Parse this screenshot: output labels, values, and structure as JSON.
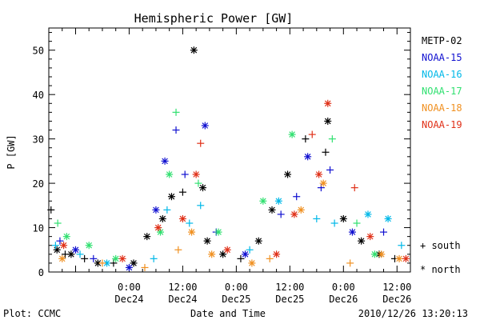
{
  "chart_data": {
    "type": "scatter",
    "title": "Hemispheric Power [GW]",
    "xlabel": "Date and Time",
    "ylabel": "P [GW]",
    "ylim": [
      0,
      55
    ],
    "xlim": [
      "2010-12-23 06:00",
      "2010-12-26 15:00"
    ],
    "y_ticks": [
      0,
      10,
      20,
      30,
      40,
      50
    ],
    "x_ticks": [
      {
        "time": "2010-12-24 00:00",
        "line1": "0:00",
        "line2": "Dec24"
      },
      {
        "time": "2010-12-24 12:00",
        "line1": "12:00",
        "line2": "Dec24"
      },
      {
        "time": "2010-12-25 00:00",
        "line1": "0:00",
        "line2": "Dec25"
      },
      {
        "time": "2010-12-25 12:00",
        "line1": "12:00",
        "line2": "Dec25"
      },
      {
        "time": "2010-12-26 00:00",
        "line1": "0:00",
        "line2": "Dec26"
      },
      {
        "time": "2010-12-26 12:00",
        "line1": "12:00",
        "line2": "Dec26"
      }
    ],
    "grid": false,
    "legend_position": "right",
    "marker_legend": [
      {
        "symbol": "+",
        "label": "south"
      },
      {
        "symbol": "*",
        "label": "north"
      }
    ],
    "footer": {
      "left": "Plot: CCMC",
      "right": "2010/12/26 13:20:13"
    },
    "series": [
      {
        "name": "METP-02",
        "color": "#000000",
        "points": [
          {
            "t": "2010-12-23 06:30",
            "y": 14,
            "m": "+"
          },
          {
            "t": "2010-12-23 07:50",
            "y": 5,
            "m": "*"
          },
          {
            "t": "2010-12-23 09:40",
            "y": 4,
            "m": "+"
          },
          {
            "t": "2010-12-23 11:00",
            "y": 4,
            "m": "*"
          },
          {
            "t": "2010-12-23 14:00",
            "y": 3,
            "m": "+"
          },
          {
            "t": "2010-12-23 17:00",
            "y": 2,
            "m": "*"
          },
          {
            "t": "2010-12-23 20:30",
            "y": 2,
            "m": "+"
          },
          {
            "t": "2010-12-24 01:00",
            "y": 2,
            "m": "*"
          },
          {
            "t": "2010-12-24 04:00",
            "y": 8,
            "m": "*"
          },
          {
            "t": "2010-12-24 07:30",
            "y": 12,
            "m": "*"
          },
          {
            "t": "2010-12-24 09:30",
            "y": 17,
            "m": "*"
          },
          {
            "t": "2010-12-24 12:00",
            "y": 18,
            "m": "+"
          },
          {
            "t": "2010-12-24 14:30",
            "y": 50,
            "m": "*"
          },
          {
            "t": "2010-12-24 16:30",
            "y": 19,
            "m": "*"
          },
          {
            "t": "2010-12-24 17:30",
            "y": 7,
            "m": "*"
          },
          {
            "t": "2010-12-24 21:00",
            "y": 4,
            "m": "*"
          },
          {
            "t": "2010-12-25 01:00",
            "y": 3,
            "m": "+"
          },
          {
            "t": "2010-12-25 05:00",
            "y": 7,
            "m": "*"
          },
          {
            "t": "2010-12-25 08:00",
            "y": 14,
            "m": "*"
          },
          {
            "t": "2010-12-25 11:30",
            "y": 22,
            "m": "*"
          },
          {
            "t": "2010-12-25 15:30",
            "y": 30,
            "m": "+"
          },
          {
            "t": "2010-12-25 20:00",
            "y": 27,
            "m": "+"
          },
          {
            "t": "2010-12-25 20:30",
            "y": 34,
            "m": "*"
          },
          {
            "t": "2010-12-26 00:00",
            "y": 12,
            "m": "*"
          },
          {
            "t": "2010-12-26 04:00",
            "y": 7,
            "m": "*"
          },
          {
            "t": "2010-12-26 08:00",
            "y": 4,
            "m": "*"
          },
          {
            "t": "2010-12-26 11:30",
            "y": 3,
            "m": "+"
          }
        ]
      },
      {
        "name": "NOAA-15",
        "color": "#1010d0",
        "points": [
          {
            "t": "2010-12-23 08:30",
            "y": 7,
            "m": "+"
          },
          {
            "t": "2010-12-23 12:00",
            "y": 5,
            "m": "*"
          },
          {
            "t": "2010-12-23 16:00",
            "y": 3,
            "m": "+"
          },
          {
            "t": "2010-12-24 00:00",
            "y": 1,
            "m": "*"
          },
          {
            "t": "2010-12-24 06:00",
            "y": 14,
            "m": "*"
          },
          {
            "t": "2010-12-24 08:00",
            "y": 25,
            "m": "*"
          },
          {
            "t": "2010-12-24 10:30",
            "y": 32,
            "m": "+"
          },
          {
            "t": "2010-12-24 12:30",
            "y": 22,
            "m": "+"
          },
          {
            "t": "2010-12-24 17:00",
            "y": 33,
            "m": "*"
          },
          {
            "t": "2010-12-24 19:30",
            "y": 9,
            "m": "+"
          },
          {
            "t": "2010-12-25 02:00",
            "y": 4,
            "m": "*"
          },
          {
            "t": "2010-12-25 10:00",
            "y": 13,
            "m": "+"
          },
          {
            "t": "2010-12-25 13:30",
            "y": 17,
            "m": "+"
          },
          {
            "t": "2010-12-25 16:00",
            "y": 26,
            "m": "*"
          },
          {
            "t": "2010-12-25 19:00",
            "y": 19,
            "m": "+"
          },
          {
            "t": "2010-12-25 21:00",
            "y": 23,
            "m": "+"
          },
          {
            "t": "2010-12-26 02:00",
            "y": 9,
            "m": "*"
          },
          {
            "t": "2010-12-26 09:00",
            "y": 9,
            "m": "+"
          }
        ]
      },
      {
        "name": "NOAA-16",
        "color": "#00b8e8",
        "points": [
          {
            "t": "2010-12-23 07:30",
            "y": 6,
            "m": "+"
          },
          {
            "t": "2010-12-23 13:00",
            "y": 4,
            "m": "+"
          },
          {
            "t": "2010-12-23 19:00",
            "y": 2,
            "m": "*"
          },
          {
            "t": "2010-12-24 05:30",
            "y": 3,
            "m": "+"
          },
          {
            "t": "2010-12-24 08:30",
            "y": 14,
            "m": "+"
          },
          {
            "t": "2010-12-24 13:30",
            "y": 11,
            "m": "+"
          },
          {
            "t": "2010-12-24 16:00",
            "y": 15,
            "m": "+"
          },
          {
            "t": "2010-12-25 03:00",
            "y": 5,
            "m": "+"
          },
          {
            "t": "2010-12-25 09:30",
            "y": 16,
            "m": "*"
          },
          {
            "t": "2010-12-25 18:00",
            "y": 12,
            "m": "+"
          },
          {
            "t": "2010-12-25 22:00",
            "y": 11,
            "m": "+"
          },
          {
            "t": "2010-12-26 05:30",
            "y": 13,
            "m": "*"
          },
          {
            "t": "2010-12-26 10:00",
            "y": 12,
            "m": "*"
          },
          {
            "t": "2010-12-26 13:00",
            "y": 6,
            "m": "+"
          }
        ]
      },
      {
        "name": "NOAA-17",
        "color": "#30e070",
        "points": [
          {
            "t": "2010-12-23 08:00",
            "y": 11,
            "m": "+"
          },
          {
            "t": "2010-12-23 10:00",
            "y": 8,
            "m": "*"
          },
          {
            "t": "2010-12-23 15:00",
            "y": 6,
            "m": "*"
          },
          {
            "t": "2010-12-23 21:00",
            "y": 3,
            "m": "*"
          },
          {
            "t": "2010-12-24 07:00",
            "y": 9,
            "m": "*"
          },
          {
            "t": "2010-12-24 09:00",
            "y": 22,
            "m": "*"
          },
          {
            "t": "2010-12-24 10:30",
            "y": 36,
            "m": "+"
          },
          {
            "t": "2010-12-24 15:30",
            "y": 20,
            "m": "+"
          },
          {
            "t": "2010-12-24 20:00",
            "y": 9,
            "m": "*"
          },
          {
            "t": "2010-12-25 06:00",
            "y": 16,
            "m": "*"
          },
          {
            "t": "2010-12-25 12:30",
            "y": 31,
            "m": "*"
          },
          {
            "t": "2010-12-25 21:30",
            "y": 30,
            "m": "+"
          },
          {
            "t": "2010-12-26 03:00",
            "y": 11,
            "m": "+"
          },
          {
            "t": "2010-12-26 07:00",
            "y": 4,
            "m": "*"
          }
        ]
      },
      {
        "name": "NOAA-18",
        "color": "#f09020",
        "points": [
          {
            "t": "2010-12-23 09:00",
            "y": 3,
            "m": "*"
          },
          {
            "t": "2010-12-23 18:00",
            "y": 2,
            "m": "+"
          },
          {
            "t": "2010-12-24 03:30",
            "y": 1,
            "m": "+"
          },
          {
            "t": "2010-12-24 11:00",
            "y": 5,
            "m": "+"
          },
          {
            "t": "2010-12-24 14:00",
            "y": 9,
            "m": "*"
          },
          {
            "t": "2010-12-24 18:30",
            "y": 4,
            "m": "*"
          },
          {
            "t": "2010-12-25 03:30",
            "y": 2,
            "m": "*"
          },
          {
            "t": "2010-12-25 07:30",
            "y": 3,
            "m": "+"
          },
          {
            "t": "2010-12-25 14:30",
            "y": 14,
            "m": "*"
          },
          {
            "t": "2010-12-25 19:30",
            "y": 20,
            "m": "*"
          },
          {
            "t": "2010-12-26 01:30",
            "y": 2,
            "m": "+"
          },
          {
            "t": "2010-12-26 08:30",
            "y": 4,
            "m": "*"
          },
          {
            "t": "2010-12-26 12:30",
            "y": 3,
            "m": "*"
          }
        ]
      },
      {
        "name": "NOAA-19",
        "color": "#e03018",
        "points": [
          {
            "t": "2010-12-23 09:20",
            "y": 6,
            "m": "*"
          },
          {
            "t": "2010-12-23 22:30",
            "y": 3,
            "m": "*"
          },
          {
            "t": "2010-12-24 06:30",
            "y": 10,
            "m": "*"
          },
          {
            "t": "2010-12-24 12:00",
            "y": 12,
            "m": "*"
          },
          {
            "t": "2010-12-24 15:00",
            "y": 22,
            "m": "*"
          },
          {
            "t": "2010-12-24 16:00",
            "y": 29,
            "m": "+"
          },
          {
            "t": "2010-12-24 22:00",
            "y": 5,
            "m": "*"
          },
          {
            "t": "2010-12-25 09:00",
            "y": 4,
            "m": "*"
          },
          {
            "t": "2010-12-25 13:00",
            "y": 13,
            "m": "*"
          },
          {
            "t": "2010-12-25 17:00",
            "y": 31,
            "m": "+"
          },
          {
            "t": "2010-12-25 18:30",
            "y": 22,
            "m": "*"
          },
          {
            "t": "2010-12-25 20:30",
            "y": 38,
            "m": "*"
          },
          {
            "t": "2010-12-26 02:30",
            "y": 19,
            "m": "+"
          },
          {
            "t": "2010-12-26 06:00",
            "y": 8,
            "m": "*"
          },
          {
            "t": "2010-12-26 14:00",
            "y": 3,
            "m": "*"
          }
        ]
      }
    ]
  }
}
